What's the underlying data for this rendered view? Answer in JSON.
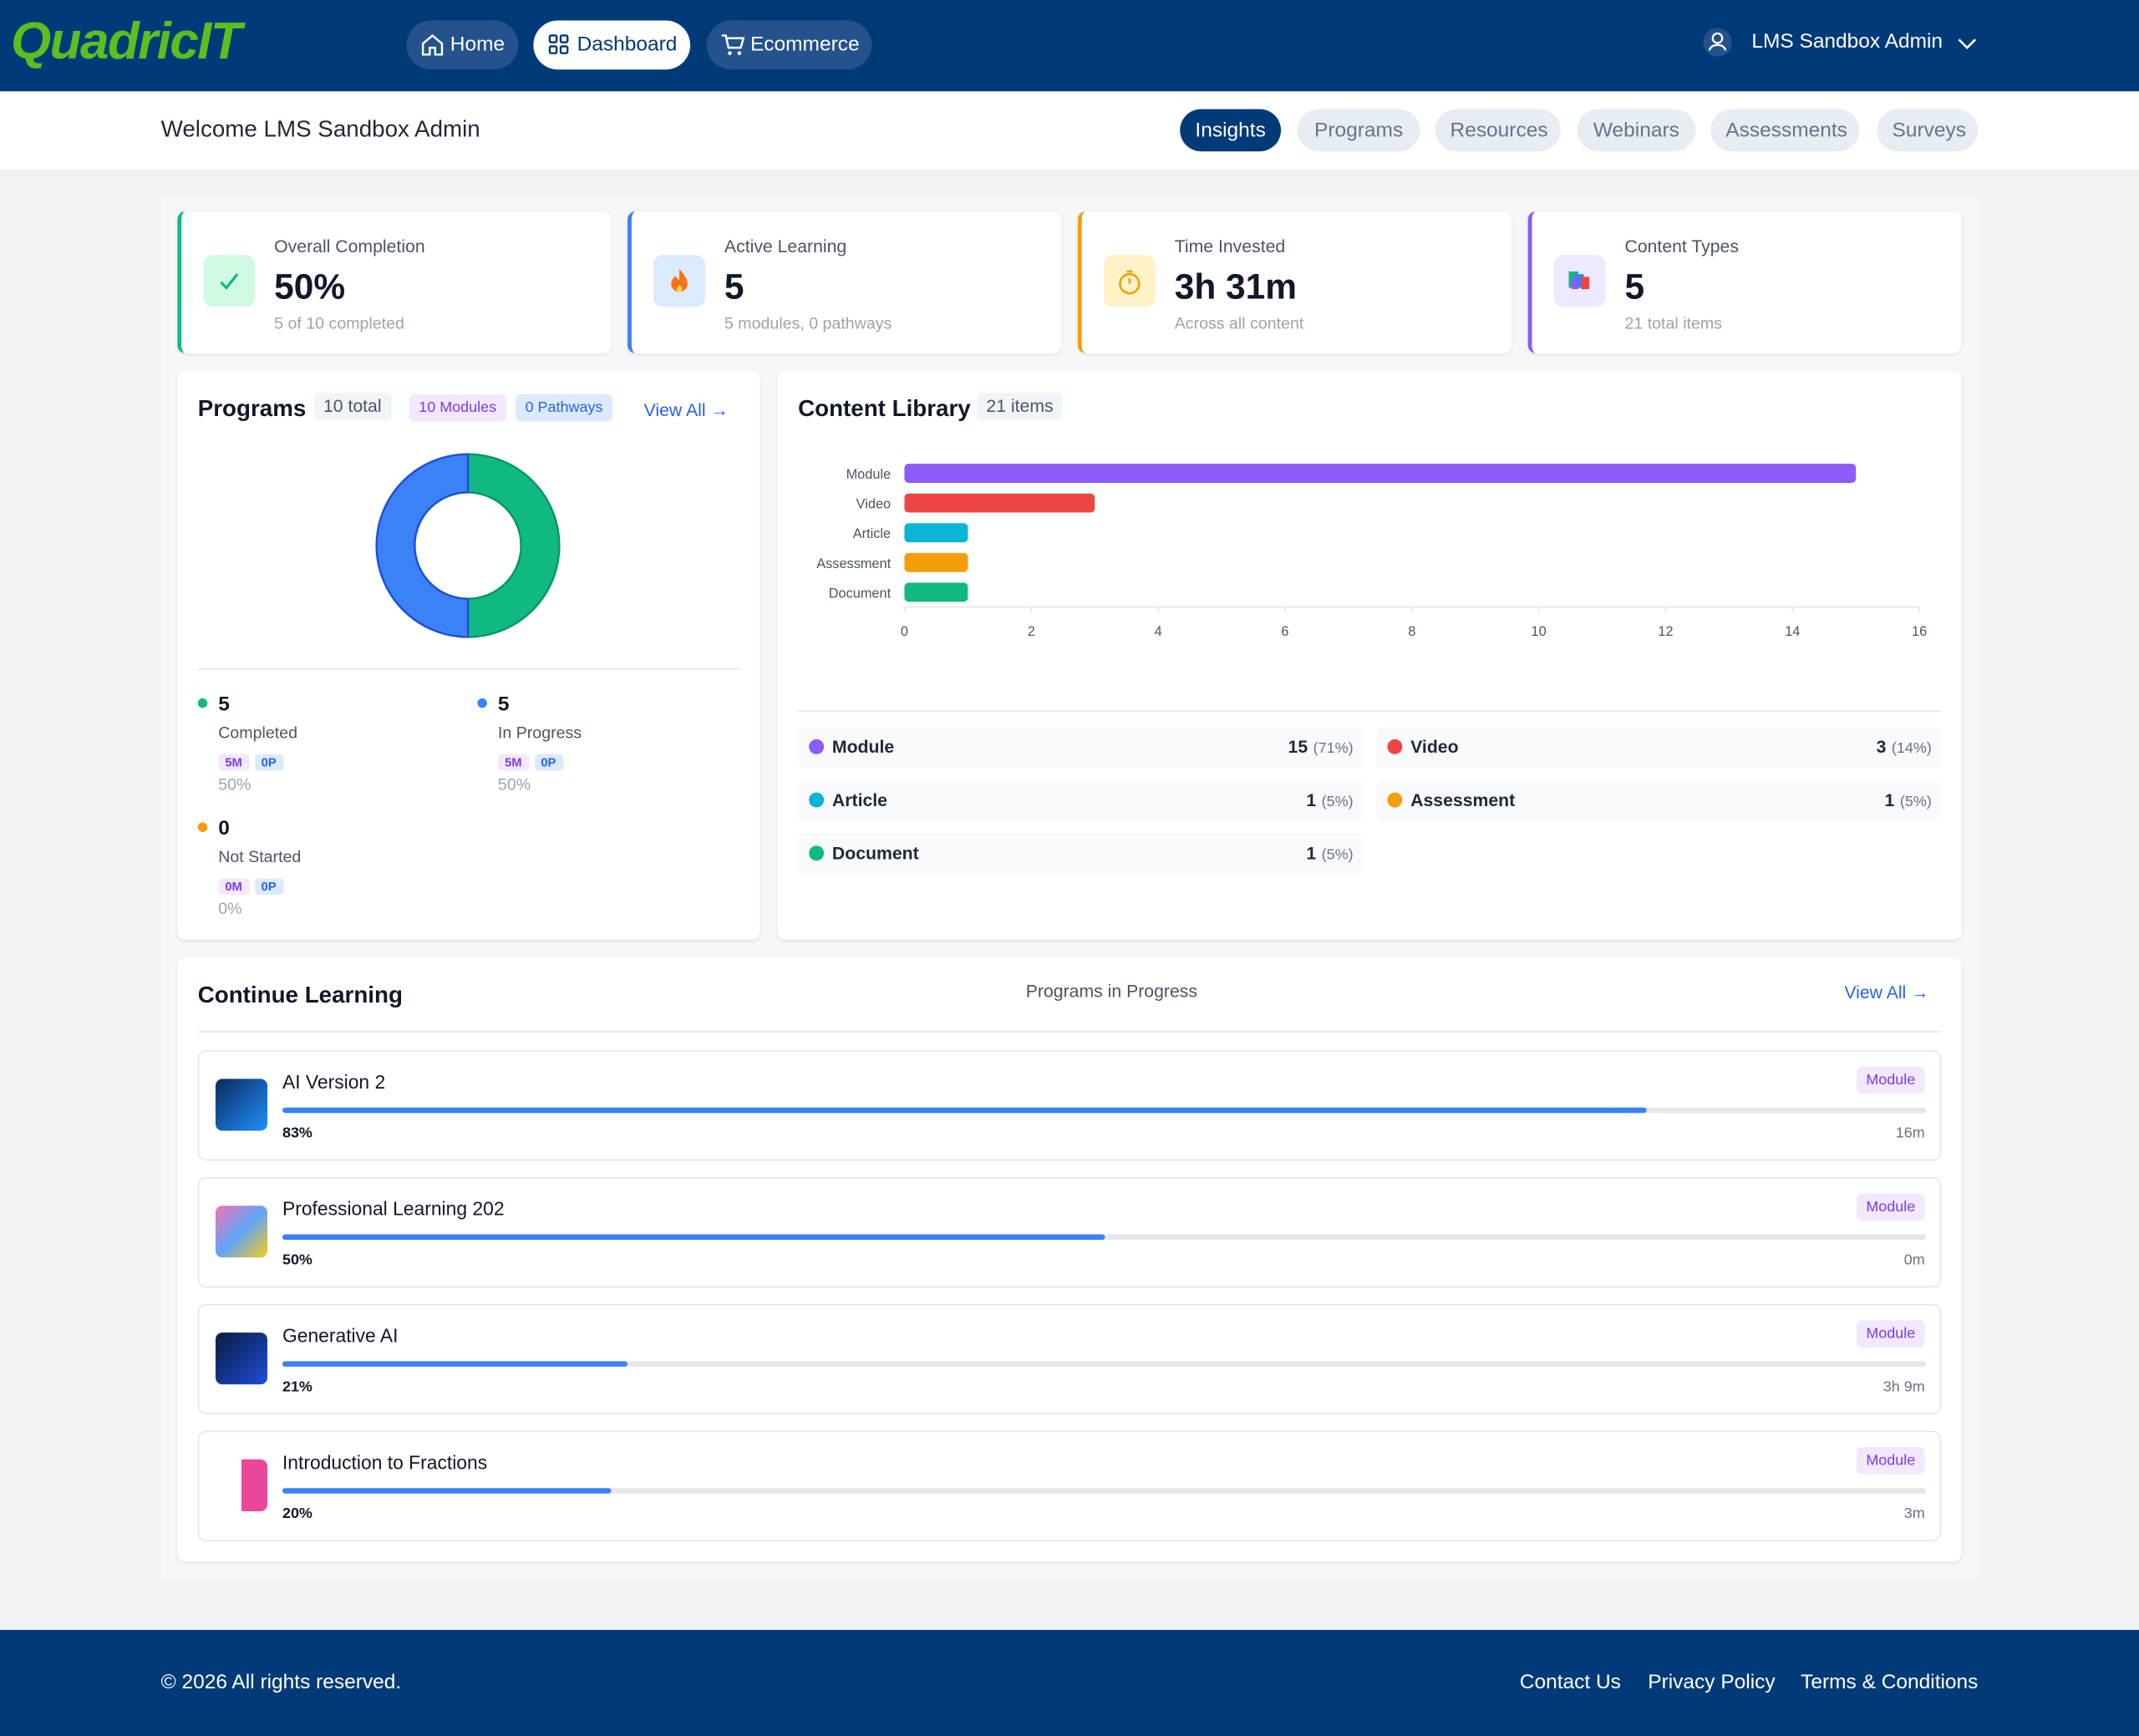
{
  "nav": {
    "logo": "QuadricIT",
    "links": [
      "Home",
      "Dashboard",
      "Ecommerce"
    ],
    "user": "LMS Sandbox Admin"
  },
  "welcome": "Welcome LMS Sandbox Admin",
  "tabs": [
    "Insights",
    "Programs",
    "Resources",
    "Webinars",
    "Assessments",
    "Surveys"
  ],
  "stats": [
    {
      "label": "Overall Completion",
      "value": "50%",
      "sub": "5 of 10 completed"
    },
    {
      "label": "Active Learning",
      "value": "5",
      "sub": "5 modules, 0 pathways"
    },
    {
      "label": "Time Invested",
      "value": "3h 31m",
      "sub": "Across all content"
    },
    {
      "label": "Content Types",
      "value": "5",
      "sub": "21 total items"
    }
  ],
  "programs": {
    "title": "Programs",
    "total": "10 total",
    "modules": "10 Modules",
    "pathways": "0 Pathways",
    "view_all": "View All →",
    "badges": [
      [
        "5M",
        "0P"
      ],
      [
        "5M",
        "0P"
      ],
      [
        "0M",
        "0P"
      ]
    ],
    "percents": [
      "50%",
      "50%",
      "0%"
    ]
  },
  "content_library": {
    "title": "Content Library",
    "count": "21 items",
    "shares": [
      "(71%)",
      "(14%)",
      "(5%)",
      "(5%)",
      "(5%)"
    ]
  },
  "chart_data": [
    {
      "type": "donut",
      "categories": [
        "Completed",
        "In Progress",
        "Not Started"
      ],
      "values": [
        5,
        5,
        0
      ],
      "colors": [
        "#10b981",
        "#3b82f6",
        "#f59e0b"
      ]
    },
    {
      "type": "hbar",
      "categories": [
        "Module",
        "Video",
        "Article",
        "Assessment",
        "Document"
      ],
      "values": [
        15,
        3,
        1,
        1,
        1
      ],
      "colors": [
        "#8b5cf6",
        "#ef4444",
        "#06b6d4",
        "#f59e0b",
        "#10b981"
      ],
      "xlim": [
        0,
        16
      ],
      "xticks": [
        0,
        2,
        4,
        6,
        8,
        10,
        12,
        14,
        16
      ]
    }
  ],
  "continue_learning": {
    "title": "Continue Learning",
    "subtitle": "Programs in Progress",
    "view_all": "View All →",
    "items": [
      {
        "title": "AI Version 2",
        "tag": "Module",
        "progress": 83,
        "progress_label": "83%",
        "time": "16m"
      },
      {
        "title": "Professional Learning 202",
        "tag": "Module",
        "progress": 50,
        "progress_label": "50%",
        "time": "0m"
      },
      {
        "title": "Generative AI",
        "tag": "Module",
        "progress": 21,
        "progress_label": "21%",
        "time": "3h 9m"
      },
      {
        "title": "Introduction to Fractions",
        "tag": "Module",
        "progress": 20,
        "progress_label": "20%",
        "time": "3m"
      }
    ]
  },
  "footer": {
    "copyright": "© 2026 All rights reserved.",
    "links": [
      "Contact Us",
      "Privacy Policy",
      "Terms & Conditions"
    ]
  }
}
